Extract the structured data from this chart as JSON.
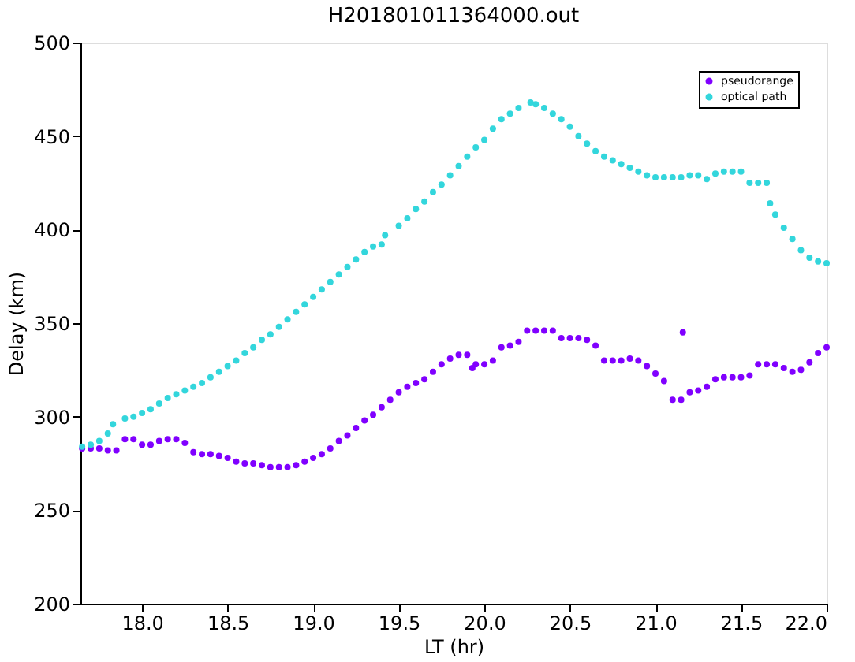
{
  "chart_data": {
    "type": "scatter",
    "title": "H201801011364000.out",
    "xlabel": "LT (hr)",
    "ylabel": "Delay (km)",
    "xlim": [
      17.64,
      22.0
    ],
    "xticks": [
      {
        "value": 18,
        "label": "18.0"
      },
      18.5,
      {
        "value": 19,
        "label": "19.0"
      },
      19.5,
      {
        "value": 20,
        "label": "20.0"
      },
      20.5,
      {
        "value": 21,
        "label": "21.0"
      },
      21.5,
      {
        "value": 22,
        "label": "22.0"
      }
    ],
    "ylim": [
      200,
      500
    ],
    "yticks": [
      200,
      250,
      300,
      350,
      400,
      450,
      500
    ],
    "grid": false,
    "legend": "top right",
    "marker": "circle",
    "series": [
      {
        "name": "pseudorange",
        "color": "#8000ff",
        "x": [
          17.65,
          17.7,
          17.75,
          17.8,
          17.85,
          17.9,
          17.95,
          18.0,
          18.05,
          18.1,
          18.15,
          18.2,
          18.25,
          18.3,
          18.35,
          18.4,
          18.45,
          18.5,
          18.55,
          18.6,
          18.65,
          18.7,
          18.75,
          18.8,
          18.85,
          18.9,
          18.95,
          19.0,
          19.05,
          19.1,
          19.15,
          19.2,
          19.25,
          19.3,
          19.35,
          19.4,
          19.45,
          19.5,
          19.55,
          19.6,
          19.65,
          19.7,
          19.75,
          19.8,
          19.85,
          19.9,
          19.93,
          19.95,
          20.0,
          20.05,
          20.1,
          20.15,
          20.2,
          20.25,
          20.3,
          20.35,
          20.4,
          20.45,
          20.5,
          20.55,
          20.6,
          20.65,
          20.7,
          20.75,
          20.8,
          20.85,
          20.9,
          20.95,
          21.0,
          21.05,
          21.1,
          21.15,
          21.16,
          21.2,
          21.25,
          21.3,
          21.35,
          21.4,
          21.45,
          21.5,
          21.55,
          21.6,
          21.65,
          21.7,
          21.75,
          21.8,
          21.85,
          21.9,
          21.95,
          22.0
        ],
        "values": [
          283,
          283,
          283,
          282,
          282,
          288,
          288,
          285,
          285,
          287,
          288,
          288,
          286,
          281,
          280,
          280,
          279,
          278,
          276,
          275,
          275,
          274,
          273,
          273,
          273,
          274,
          276,
          278,
          280,
          283,
          287,
          290,
          294,
          298,
          301,
          305,
          309,
          313,
          316,
          318,
          320,
          324,
          328,
          331,
          333,
          333,
          326,
          328,
          328,
          330,
          337,
          338,
          340,
          346,
          346,
          346,
          346,
          342,
          342,
          342,
          341,
          338,
          330,
          330,
          330,
          331,
          330,
          327,
          323,
          319,
          309,
          309,
          345,
          313,
          314,
          316,
          320,
          321,
          321,
          321,
          322,
          328,
          328,
          328,
          326,
          324,
          325,
          329,
          334,
          337
        ]
      },
      {
        "name": "optical path",
        "color": "#33d6dc",
        "x": [
          17.65,
          17.7,
          17.75,
          17.8,
          17.83,
          17.9,
          17.95,
          18.0,
          18.05,
          18.1,
          18.15,
          18.2,
          18.25,
          18.3,
          18.35,
          18.4,
          18.45,
          18.5,
          18.55,
          18.6,
          18.65,
          18.7,
          18.75,
          18.8,
          18.85,
          18.9,
          18.95,
          19.0,
          19.05,
          19.1,
          19.15,
          19.2,
          19.25,
          19.3,
          19.35,
          19.4,
          19.42,
          19.5,
          19.55,
          19.6,
          19.65,
          19.7,
          19.75,
          19.8,
          19.85,
          19.9,
          19.95,
          20.0,
          20.05,
          20.1,
          20.15,
          20.2,
          20.27,
          20.3,
          20.35,
          20.4,
          20.45,
          20.5,
          20.55,
          20.6,
          20.65,
          20.7,
          20.75,
          20.8,
          20.85,
          20.9,
          20.95,
          21.0,
          21.05,
          21.1,
          21.15,
          21.2,
          21.25,
          21.3,
          21.35,
          21.4,
          21.45,
          21.5,
          21.55,
          21.6,
          21.65,
          21.67,
          21.7,
          21.75,
          21.8,
          21.85,
          21.9,
          21.95,
          22.0
        ],
        "values": [
          284,
          285,
          287,
          291,
          296,
          299,
          300,
          302,
          304,
          307,
          310,
          312,
          314,
          316,
          318,
          321,
          324,
          327,
          330,
          334,
          337,
          341,
          344,
          348,
          352,
          356,
          360,
          364,
          368,
          372,
          376,
          380,
          384,
          388,
          391,
          392,
          397,
          402,
          406,
          411,
          415,
          420,
          424,
          429,
          434,
          439,
          444,
          448,
          454,
          459,
          462,
          465,
          468,
          467,
          465,
          462,
          459,
          455,
          450,
          446,
          442,
          439,
          437,
          435,
          433,
          431,
          429,
          428,
          428,
          428,
          428,
          429,
          429,
          427,
          430,
          431,
          431,
          431,
          425,
          425,
          425,
          414,
          408,
          401,
          395,
          389,
          385,
          383,
          382
        ]
      }
    ]
  }
}
